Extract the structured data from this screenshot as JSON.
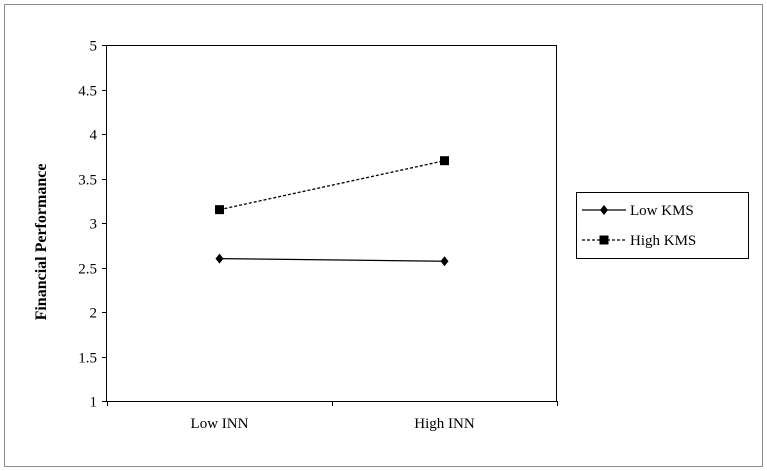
{
  "chart_data": {
    "type": "line",
    "categories": [
      "Low INN",
      "High INN"
    ],
    "series": [
      {
        "name": "Low KMS",
        "values": [
          2.6,
          2.57
        ],
        "line_style": "solid",
        "marker": "diamond",
        "color": "#000000"
      },
      {
        "name": "High KMS",
        "values": [
          3.15,
          3.7
        ],
        "line_style": "dashed",
        "marker": "square",
        "color": "#000000"
      }
    ],
    "title": "",
    "xlabel": "",
    "ylabel": "Financial Performance",
    "ylim": [
      1,
      5
    ],
    "yticks": [
      "1",
      "1.5",
      "2",
      "2.5",
      "3",
      "3.5",
      "4",
      "4.5",
      "5"
    ],
    "grid": false,
    "legend_position": "right"
  }
}
